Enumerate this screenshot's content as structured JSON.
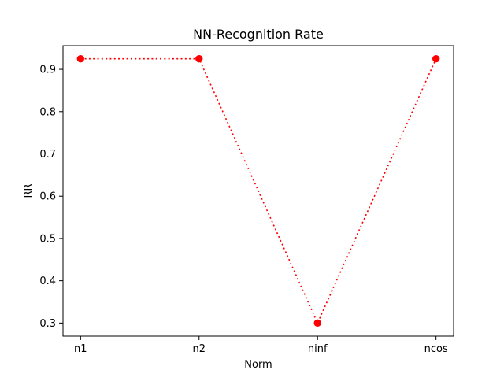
{
  "chart_data": {
    "type": "line",
    "title": "NN-Recognition Rate",
    "xlabel": "Norm",
    "ylabel": "RR",
    "categories": [
      "n1",
      "n2",
      "ninf",
      "ncos"
    ],
    "series": [
      {
        "values": [
          0.925,
          0.925,
          0.3,
          0.925
        ],
        "color": "#ff0000",
        "line_style": "dotted",
        "marker": "circle"
      }
    ],
    "ylim": [
      0.269,
      0.956
    ],
    "yticks": [
      0.3,
      0.4,
      0.5,
      0.6,
      0.7,
      0.8,
      0.9
    ],
    "ytick_labels": [
      "0.3",
      "0.4",
      "0.5",
      "0.6",
      "0.7",
      "0.8",
      "0.9"
    ],
    "grid": false,
    "legend": "none"
  }
}
